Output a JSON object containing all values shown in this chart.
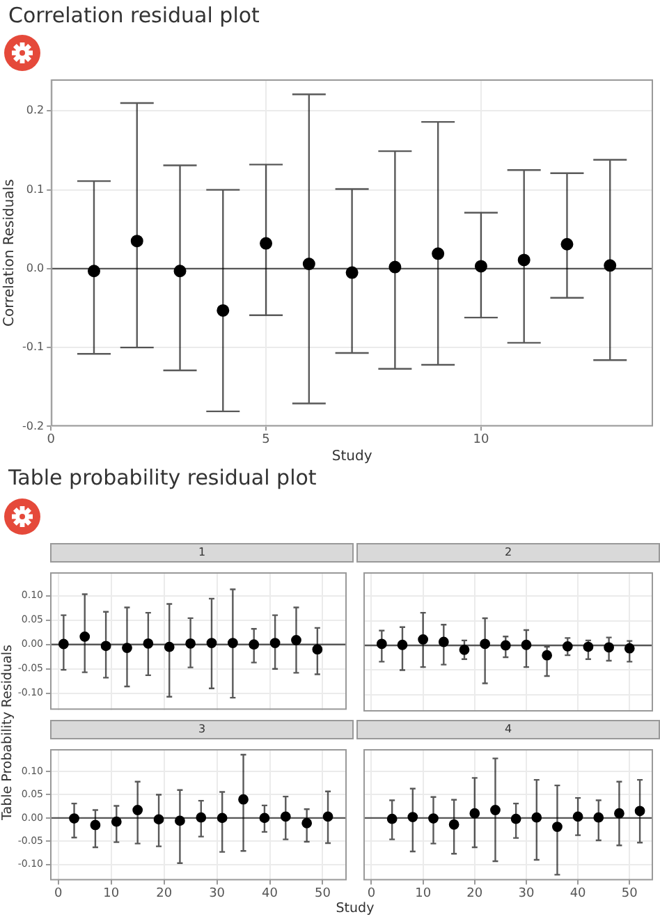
{
  "chart_data": [
    {
      "type": "scatter",
      "title": "Correlation residual plot",
      "xlabel": "Study",
      "ylabel": "Correlation Residuals",
      "x": [
        1,
        2,
        3,
        4,
        5,
        6,
        7,
        8,
        9,
        10,
        11,
        12,
        13
      ],
      "series": [
        {
          "color": "#000000",
          "values": [
            -0.003,
            0.035,
            -0.003,
            -0.053,
            0.032,
            0.006,
            -0.005,
            0.002,
            0.019,
            0.003,
            0.011,
            0.031,
            0.004
          ],
          "errors": [
            [
              -0.108,
              0.111
            ],
            [
              -0.1,
              0.21
            ],
            [
              -0.129,
              0.131
            ],
            [
              -0.181,
              0.1
            ],
            [
              -0.059,
              0.132
            ],
            [
              -0.171,
              0.221
            ],
            [
              -0.107,
              0.101
            ],
            [
              -0.127,
              0.149
            ],
            [
              -0.122,
              0.186
            ],
            [
              -0.062,
              0.071
            ],
            [
              -0.094,
              0.125
            ],
            [
              -0.037,
              0.121
            ],
            [
              -0.116,
              0.138
            ]
          ]
        }
      ],
      "xlim": [
        0,
        14
      ],
      "xticks": [
        0,
        5,
        10
      ],
      "ylim": [
        -0.2,
        0.24
      ],
      "yticks": [
        -0.2,
        -0.1,
        {
          "value": 0,
          "label": "0.0"
        },
        0.1,
        0.2
      ],
      "ref_lines": [
        {
          "axis": "y",
          "value": 0,
          "color": "#555555"
        }
      ],
      "grid": true,
      "marker": "circle"
    },
    {
      "type": "scatter",
      "title": "Table probability residual plot",
      "subtitle": "1",
      "ylabel": "Table Probability Residuals",
      "x": [
        1,
        5,
        9,
        13,
        17,
        21,
        25,
        29,
        33,
        37,
        41,
        45,
        49
      ],
      "series": [
        {
          "color": "#000000",
          "values": [
            0.001,
            0.016,
            -0.003,
            -0.007,
            0.002,
            -0.005,
            0.002,
            0.003,
            0.003,
            0.0,
            0.003,
            0.009,
            -0.01
          ],
          "errors": [
            [
              -0.052,
              0.06
            ],
            [
              -0.057,
              0.103
            ],
            [
              -0.068,
              0.067
            ],
            [
              -0.086,
              0.076
            ],
            [
              -0.063,
              0.065
            ],
            [
              -0.107,
              0.083
            ],
            [
              -0.047,
              0.054
            ],
            [
              -0.09,
              0.094
            ],
            [
              -0.109,
              0.113
            ],
            [
              -0.037,
              0.032
            ],
            [
              -0.05,
              0.06
            ],
            [
              -0.058,
              0.076
            ],
            [
              -0.061,
              0.034
            ]
          ]
        }
      ],
      "xlim": [
        -1.55,
        54.55
      ],
      "xticks": [
        0,
        10,
        20,
        30,
        40,
        50
      ],
      "ylim": [
        -0.134,
        0.148
      ],
      "yticks": [
        {
          "value": -0.1,
          "label": "-0.10"
        },
        -0.05,
        {
          "value": 0,
          "label": "0.00"
        },
        0.05,
        {
          "value": 0.1,
          "label": "0.10"
        }
      ],
      "ref_lines": [
        {
          "axis": "y",
          "value": 0,
          "color": "#555555"
        }
      ],
      "grid": true,
      "marker": "circle",
      "tick_labels": "y"
    },
    {
      "type": "scatter",
      "subtitle": "2",
      "x": [
        2,
        6,
        10,
        14,
        18,
        22,
        26,
        30,
        34,
        38,
        42,
        46,
        50
      ],
      "series": [
        {
          "color": "#000000",
          "values": [
            0.003,
            0.001,
            0.012,
            0.007,
            -0.009,
            0.003,
            0.0,
            0.001,
            -0.02,
            -0.002,
            -0.003,
            -0.004,
            -0.006
          ],
          "errors": [
            [
              -0.033,
              0.03
            ],
            [
              -0.05,
              0.037
            ],
            [
              -0.044,
              0.066
            ],
            [
              -0.039,
              0.042
            ],
            [
              -0.028,
              0.01
            ],
            [
              -0.077,
              0.055
            ],
            [
              -0.024,
              0.018
            ],
            [
              -0.044,
              0.031
            ],
            [
              -0.062,
              -0.003
            ],
            [
              -0.02,
              0.015
            ],
            [
              -0.028,
              0.01
            ],
            [
              -0.031,
              0.016
            ],
            [
              -0.033,
              0.009
            ]
          ]
        }
      ],
      "xlim": [
        -1.55,
        54.55
      ],
      "xticks": [
        0,
        10,
        20,
        30,
        40,
        50
      ],
      "ylim": [
        -0.134,
        0.148
      ],
      "yticks": [
        -0.1,
        -0.05,
        0,
        0.05,
        0.1
      ],
      "ref_lines": [
        {
          "axis": "y",
          "value": 0,
          "color": "#555555"
        }
      ],
      "grid": true,
      "marker": "circle",
      "tick_labels": false
    },
    {
      "type": "scatter",
      "subtitle": "3",
      "xlabel": "Study",
      "x": [
        3,
        7,
        11,
        15,
        19,
        23,
        27,
        31,
        35,
        39,
        43,
        47,
        51
      ],
      "series": [
        {
          "color": "#000000",
          "values": [
            -0.001,
            -0.015,
            -0.008,
            0.017,
            -0.003,
            -0.006,
            0.001,
            0.0,
            0.04,
            0.0,
            0.003,
            -0.011,
            0.003
          ],
          "errors": [
            [
              -0.042,
              0.031
            ],
            [
              -0.063,
              0.017
            ],
            [
              -0.052,
              0.026
            ],
            [
              -0.055,
              0.078
            ],
            [
              -0.061,
              0.05
            ],
            [
              -0.097,
              0.06
            ],
            [
              -0.04,
              0.037
            ],
            [
              -0.073,
              0.056
            ],
            [
              -0.071,
              0.136
            ],
            [
              -0.03,
              0.027
            ],
            [
              -0.046,
              0.046
            ],
            [
              -0.051,
              0.019
            ],
            [
              -0.054,
              0.057
            ]
          ]
        }
      ],
      "xlim": [
        -1.55,
        54.55
      ],
      "xticks": [
        0,
        10,
        20,
        30,
        40,
        50
      ],
      "ylim": [
        -0.134,
        0.148
      ],
      "yticks": [
        {
          "value": -0.1,
          "label": "-0.10"
        },
        -0.05,
        {
          "value": 0,
          "label": "0.00"
        },
        0.05,
        {
          "value": 0.1,
          "label": "0.10"
        }
      ],
      "ref_lines": [
        {
          "axis": "y",
          "value": 0,
          "color": "#555555"
        }
      ],
      "grid": true,
      "marker": "circle"
    },
    {
      "type": "scatter",
      "subtitle": "4",
      "x": [
        4,
        8,
        12,
        16,
        20,
        24,
        28,
        32,
        36,
        40,
        44,
        48,
        52
      ],
      "series": [
        {
          "color": "#000000",
          "values": [
            -0.002,
            0.002,
            -0.001,
            -0.014,
            0.01,
            0.017,
            -0.002,
            0.001,
            -0.019,
            0.003,
            0.001,
            0.01,
            0.015
          ],
          "errors": [
            [
              -0.046,
              0.038
            ],
            [
              -0.072,
              0.063
            ],
            [
              -0.055,
              0.045
            ],
            [
              -0.077,
              0.039
            ],
            [
              -0.063,
              0.086
            ],
            [
              -0.093,
              0.128
            ],
            [
              -0.043,
              0.031
            ],
            [
              -0.09,
              0.082
            ],
            [
              -0.122,
              0.07
            ],
            [
              -0.037,
              0.043
            ],
            [
              -0.048,
              0.038
            ],
            [
              -0.059,
              0.078
            ],
            [
              -0.053,
              0.082
            ]
          ]
        }
      ],
      "xlim": [
        -1.55,
        54.55
      ],
      "xticks": [
        0,
        10,
        20,
        30,
        40,
        50
      ],
      "ylim": [
        -0.134,
        0.148
      ],
      "yticks": [
        -0.1,
        -0.05,
        0,
        0.05,
        0.1
      ],
      "ref_lines": [
        {
          "axis": "y",
          "value": 0,
          "color": "#555555"
        }
      ],
      "grid": true,
      "marker": "circle",
      "tick_labels": "x"
    }
  ]
}
